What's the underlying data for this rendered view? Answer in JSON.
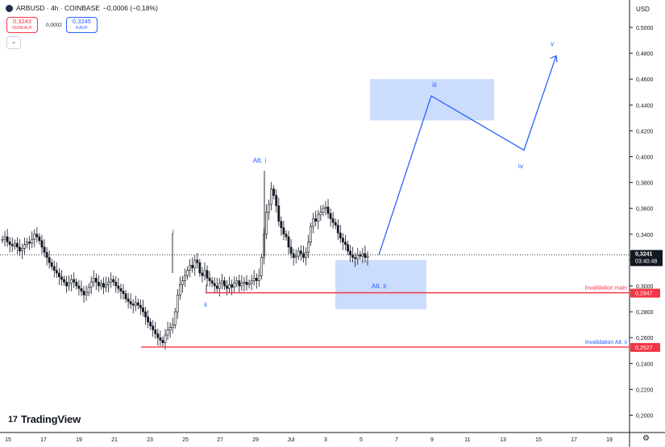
{
  "header": {
    "symbol": "ARBUSD · 4h · COINBASE",
    "change": "−0,0006 (−0,18%)",
    "sell_price": "0,3243",
    "sell_label": "VERKAUF",
    "spread": "0,0002",
    "buy_price": "0,3245",
    "buy_label": "KAUF"
  },
  "brand": {
    "name": "TradingView",
    "mark": "17"
  },
  "axis_currency": "USD",
  "colors": {
    "up": "#131722",
    "down": "#131722",
    "wave": "#2962ff",
    "box": "#bbd0fb",
    "invalid": "#f23645",
    "last": "#131722"
  },
  "chart_data": {
    "type": "candlestick",
    "symbol": "ARBUSD",
    "timeframe": "4h",
    "exchange": "COINBASE",
    "ylim": [
      0.19,
      0.52
    ],
    "y_ticks": [
      "0,5000",
      "0,4800",
      "0,4600",
      "0,4400",
      "0,4200",
      "0,4000",
      "0,3800",
      "0,3600",
      "0,3400",
      "0,3200",
      "0,3000",
      "0,2800",
      "0,2600",
      "0,2400",
      "0,2200",
      "0,2000"
    ],
    "x_ticks": [
      "15",
      "17",
      "19",
      "21",
      "23",
      "25",
      "27",
      "29",
      "Jul",
      "3",
      "5",
      "7",
      "9",
      "11",
      "13",
      "15",
      "17",
      "19"
    ],
    "candles_close_path": [
      0.336,
      0.338,
      0.334,
      0.332,
      0.331,
      0.333,
      0.33,
      0.327,
      0.329,
      0.332,
      0.334,
      0.333,
      0.336,
      0.34,
      0.338,
      0.335,
      0.33,
      0.326,
      0.322,
      0.318,
      0.315,
      0.312,
      0.31,
      0.307,
      0.305,
      0.303,
      0.3,
      0.302,
      0.305,
      0.303,
      0.3,
      0.298,
      0.296,
      0.293,
      0.295,
      0.299,
      0.303,
      0.306,
      0.303,
      0.3,
      0.302,
      0.299,
      0.301,
      0.303,
      0.305,
      0.303,
      0.3,
      0.298,
      0.296,
      0.294,
      0.29,
      0.288,
      0.286,
      0.285,
      0.287,
      0.285,
      0.283,
      0.28,
      0.276,
      0.272,
      0.269,
      0.266,
      0.263,
      0.26,
      0.258,
      0.256,
      0.262,
      0.266,
      0.268,
      0.27,
      0.28,
      0.293,
      0.301,
      0.304,
      0.308,
      0.312,
      0.316,
      0.314,
      0.32,
      0.318,
      0.31,
      0.308,
      0.312,
      0.306,
      0.304,
      0.302,
      0.3,
      0.298,
      0.302,
      0.304,
      0.3,
      0.298,
      0.301,
      0.299,
      0.302,
      0.304,
      0.3,
      0.302,
      0.303,
      0.301,
      0.302,
      0.304,
      0.306,
      0.304,
      0.308,
      0.322,
      0.34,
      0.357,
      0.363,
      0.375,
      0.37,
      0.362,
      0.35,
      0.345,
      0.34,
      0.338,
      0.33,
      0.325,
      0.322,
      0.323,
      0.327,
      0.325,
      0.322,
      0.326,
      0.334,
      0.346,
      0.352,
      0.35,
      0.355,
      0.357,
      0.36,
      0.361,
      0.356,
      0.352,
      0.349,
      0.347,
      0.341,
      0.337,
      0.334,
      0.332,
      0.327,
      0.324,
      0.322,
      0.321,
      0.324,
      0.323,
      0.325,
      0.322,
      0.323
    ],
    "spikes": [
      {
        "label": "i",
        "high": 0.341,
        "low": 0.31
      },
      {
        "label": "Alt. i",
        "high": 0.389,
        "low": 0.323
      },
      {
        "label": "ii",
        "high": 0.301,
        "low": 0.294
      }
    ],
    "last_price": "0,3241",
    "countdown": "03:40:48",
    "wave_projection": [
      {
        "x_label": "5",
        "y": 0.324
      },
      {
        "x_label": "9",
        "y": 0.447
      },
      {
        "x_label": "14",
        "y": 0.405
      },
      {
        "x_label": "16",
        "y": 0.478
      }
    ],
    "wave_labels": [
      "i",
      "Alt. i",
      "ii",
      "Alt. ii",
      "iii",
      "iv",
      "v"
    ],
    "zones": [
      {
        "label": "iii",
        "y_top": 0.46,
        "y_bottom": 0.428
      },
      {
        "label": "Alt. ii",
        "y_top": 0.32,
        "y_bottom": 0.282
      }
    ],
    "levels": [
      {
        "label": "Invalidation main",
        "value": 0.2947,
        "text": "0,2947"
      },
      {
        "label": "Invalidation Alt. ii",
        "value": 0.2527,
        "text": "0,2527"
      }
    ],
    "price_labels": [
      "0,3241",
      "0,2947",
      "0,2527"
    ]
  }
}
